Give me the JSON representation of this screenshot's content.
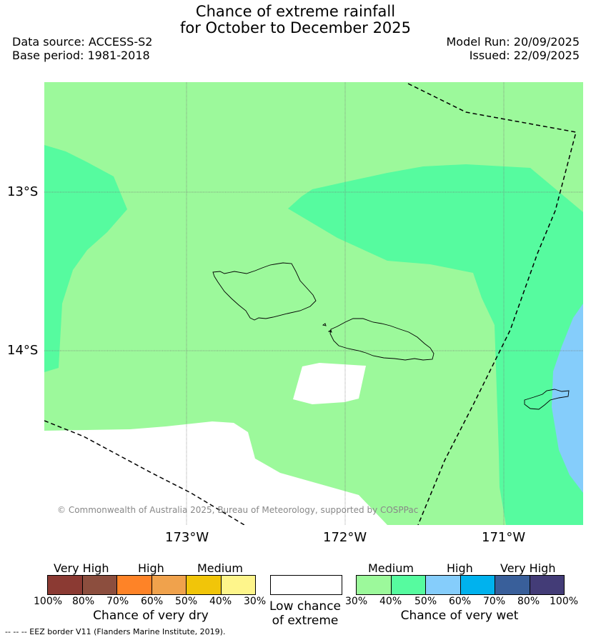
{
  "title": {
    "line1": "Chance of extreme rainfall",
    "line2": "for October to December 2025"
  },
  "meta": {
    "data_source": "Data source: ACCESS-S2",
    "base_period": "Base period: 1981-2018",
    "model_run": "Model Run: 20/09/2025",
    "issued": "Issued: 22/09/2025"
  },
  "map": {
    "lat_labels": [
      "13°S",
      "14°S"
    ],
    "lon_labels": [
      "173°W",
      "172°W",
      "171°W"
    ],
    "copyright": "© Commonwealth of Australia 2025, Bureau of Meteorology, supported by COSPPac",
    "colors": {
      "wet_30_40": "#9cf99b",
      "wet_40_50": "#56fb9f",
      "wet_50_60": "#85cdfb",
      "low": "#ffffff"
    }
  },
  "legend": {
    "dry": {
      "levels": [
        "Very High",
        "High",
        "Medium"
      ],
      "ticks": [
        "100%",
        "80%",
        "70%",
        "60%",
        "50%",
        "40%",
        "30%"
      ],
      "colors": [
        "#8b3a33",
        "#8c4e3e",
        "#fe8327",
        "#f0a24c",
        "#f1c509",
        "#fef58b"
      ],
      "caption": "Chance of very dry"
    },
    "low": {
      "caption_line1": "Low chance",
      "caption_line2": "of extreme"
    },
    "wet": {
      "levels": [
        "Medium",
        "High",
        "Very High"
      ],
      "ticks": [
        "30%",
        "40%",
        "50%",
        "60%",
        "70%",
        "80%",
        "100%"
      ],
      "colors": [
        "#9cf99b",
        "#56fb9f",
        "#85cdfb",
        "#00b2ee",
        "#395f9a",
        "#433c77"
      ],
      "caption": "Chance of very wet"
    },
    "eez_note": "--  --  -- EEZ border V11 (Flanders Marine Institute, 2019)."
  }
}
